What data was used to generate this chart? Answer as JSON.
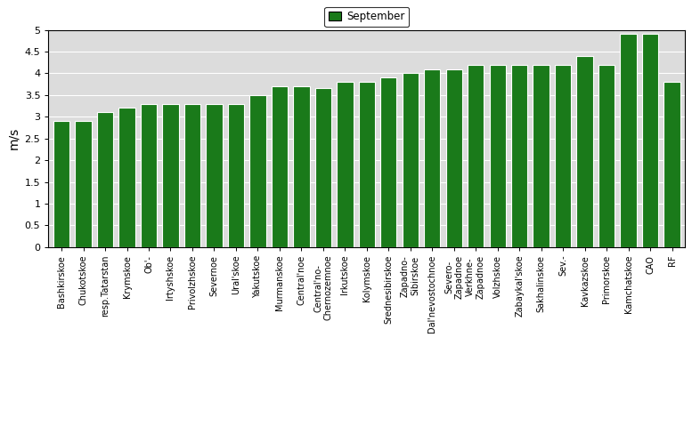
{
  "categories": [
    "Bashkirskoe",
    "Chukotskoe",
    "resp.Tatarstan",
    "Krymskoe",
    "Ob'-",
    "Irtyshskoe",
    "Privolzhskoe",
    "Severnoe",
    "Ural'skoe",
    "Yakutskoe",
    "Murmanskoe",
    "Central'noe",
    "Central'no-\nChernozemnoe",
    "Irkutskoe",
    "Kolymskoe",
    "Srednesibirskoe",
    "Zapadno-\nSibirskoe",
    "Dal'nevostochnoe",
    "Severo-\nZapadnoe",
    "Verkhne-\nZapadnoe",
    "Volzhskoe",
    "Zabaykal'skoe",
    "Sakhalinskoe",
    "Sev.-",
    "Kavkazskoe",
    "Primorskoe",
    "Kamchatskoe",
    "CAO",
    "RF"
  ],
  "values": [
    2.9,
    2.9,
    3.1,
    3.2,
    3.3,
    3.3,
    3.3,
    3.3,
    3.3,
    3.5,
    3.7,
    3.7,
    3.65,
    3.8,
    3.8,
    3.9,
    4.0,
    4.1,
    4.1,
    4.2,
    4.2,
    4.2,
    4.2,
    4.2,
    4.4,
    4.2,
    4.9,
    4.9,
    3.8
  ],
  "bar_color": "#1a7a1a",
  "bar_edge_color": "white",
  "background_color": "#dcdcdc",
  "ylabel": "m/s",
  "ylim": [
    0,
    5
  ],
  "yticks": [
    0,
    0.5,
    1.0,
    1.5,
    2.0,
    2.5,
    3.0,
    3.5,
    4.0,
    4.5,
    5.0
  ],
  "legend_label": "September",
  "legend_color": "#1a7a1a",
  "tick_fontsize": 7,
  "ylabel_fontsize": 10,
  "legend_fontsize": 8.5
}
